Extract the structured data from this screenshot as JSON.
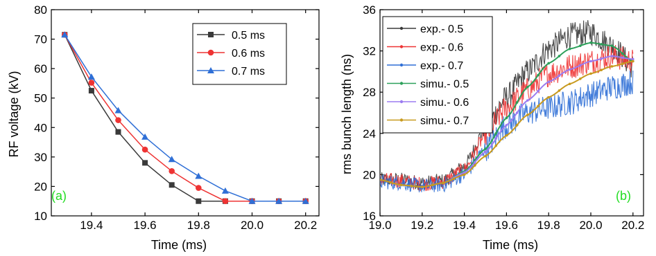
{
  "chart_data": [
    {
      "panel": "(a)",
      "type": "line",
      "xlabel": "Time (ms)",
      "ylabel": "RF voltage (kV)",
      "xlim": [
        19.25,
        20.25
      ],
      "ylim": [
        10,
        80
      ],
      "xticks": [
        "19.4",
        "19.6",
        "19.8",
        "20.0",
        "20.2"
      ],
      "xtick_values": [
        19.4,
        19.6,
        19.8,
        20.0,
        20.2
      ],
      "yticks": [
        "10",
        "20",
        "30",
        "40",
        "50",
        "60",
        "70",
        "80"
      ],
      "ytick_values": [
        10,
        20,
        30,
        40,
        50,
        60,
        70,
        80
      ],
      "legend_position": "top-right",
      "x": [
        19.3,
        19.4,
        19.5,
        19.6,
        19.7,
        19.8,
        19.9,
        20.0,
        20.1,
        20.2
      ],
      "series": [
        {
          "name": "0.5 ms",
          "color": "#3a3a3a",
          "marker": "square",
          "values": [
            71.5,
            52.5,
            38.5,
            28.0,
            20.5,
            15.0,
            15.0,
            15.0,
            15.0,
            15.0
          ]
        },
        {
          "name": "0.6 ms",
          "color": "#ee3333",
          "marker": "circle",
          "values": [
            71.5,
            55.2,
            42.5,
            32.5,
            25.2,
            19.5,
            15.0,
            15.0,
            15.0,
            15.0
          ]
        },
        {
          "name": "0.7 ms",
          "color": "#2f6fd6",
          "marker": "triangle",
          "values": [
            71.5,
            57.2,
            45.8,
            36.8,
            29.2,
            23.5,
            18.5,
            15.0,
            15.0,
            15.0
          ]
        }
      ]
    },
    {
      "panel": "(b)",
      "type": "line",
      "xlabel": "Time (ms)",
      "ylabel": "rms bunch length (ns)",
      "xlim": [
        19.0,
        20.25
      ],
      "ylim": [
        16,
        36
      ],
      "xticks": [
        "19.0",
        "19.2",
        "19.4",
        "19.6",
        "19.8",
        "20.0",
        "20.2"
      ],
      "xtick_values": [
        19.0,
        19.2,
        19.4,
        19.6,
        19.8,
        20.0,
        20.2
      ],
      "yticks": [
        "16",
        "20",
        "24",
        "28",
        "32",
        "36"
      ],
      "ytick_values": [
        16,
        20,
        24,
        28,
        32,
        36
      ],
      "legend_position": "top-left",
      "series": [
        {
          "name": "exp.- 0.5",
          "color": "#3a3a3a",
          "kind": "noisy",
          "x": [
            19.0,
            19.1,
            19.2,
            19.3,
            19.4,
            19.5,
            19.6,
            19.7,
            19.8,
            19.9,
            20.0,
            20.1,
            20.2
          ],
          "values": [
            19.5,
            19.5,
            19.2,
            19.4,
            20.8,
            24.5,
            27.5,
            30.0,
            32.2,
            33.5,
            33.8,
            32.5,
            30.5
          ],
          "noise": 0.9
        },
        {
          "name": "exp.- 0.6",
          "color": "#ee3333",
          "kind": "noisy",
          "x": [
            19.0,
            19.1,
            19.2,
            19.3,
            19.4,
            19.5,
            19.6,
            19.7,
            19.8,
            19.9,
            20.0,
            20.1,
            20.2
          ],
          "values": [
            19.5,
            19.4,
            19.1,
            19.3,
            20.5,
            23.8,
            26.5,
            28.2,
            29.8,
            30.5,
            31.0,
            31.5,
            31.0
          ],
          "noise": 0.9
        },
        {
          "name": "exp.- 0.7",
          "color": "#2f6fd6",
          "kind": "noisy",
          "x": [
            19.0,
            19.1,
            19.2,
            19.3,
            19.4,
            19.5,
            19.6,
            19.7,
            19.8,
            19.9,
            20.0,
            20.1,
            20.2
          ],
          "values": [
            19.3,
            19.2,
            18.9,
            19.0,
            20.0,
            22.5,
            24.8,
            26.0,
            26.5,
            27.0,
            27.8,
            28.5,
            29.0
          ],
          "noise": 0.9
        },
        {
          "name": "simu.- 0.5",
          "color": "#2ca05a",
          "kind": "smooth",
          "x": [
            19.0,
            19.1,
            19.2,
            19.3,
            19.4,
            19.5,
            19.6,
            19.7,
            19.8,
            19.9,
            20.0,
            20.1,
            20.2
          ],
          "values": [
            19.5,
            19.0,
            18.8,
            19.2,
            20.3,
            22.5,
            25.5,
            28.5,
            30.8,
            32.2,
            32.8,
            32.5,
            31.0
          ]
        },
        {
          "name": "simu.- 0.6",
          "color": "#9b7bf0",
          "kind": "smooth",
          "x": [
            19.0,
            19.1,
            19.2,
            19.3,
            19.4,
            19.5,
            19.6,
            19.7,
            19.8,
            19.9,
            20.0,
            20.1,
            20.2
          ],
          "values": [
            19.5,
            19.0,
            18.8,
            19.2,
            20.2,
            22.2,
            24.8,
            27.2,
            29.0,
            30.2,
            31.0,
            31.5,
            31.2
          ]
        },
        {
          "name": "simu.- 0.7",
          "color": "#c89a1e",
          "kind": "smooth",
          "x": [
            19.0,
            19.1,
            19.2,
            19.3,
            19.4,
            19.5,
            19.6,
            19.7,
            19.8,
            19.9,
            20.0,
            20.1,
            20.2
          ],
          "values": [
            19.5,
            19.0,
            18.8,
            19.2,
            20.0,
            21.8,
            23.8,
            25.8,
            27.5,
            28.8,
            29.8,
            30.5,
            31.0
          ]
        }
      ]
    }
  ]
}
